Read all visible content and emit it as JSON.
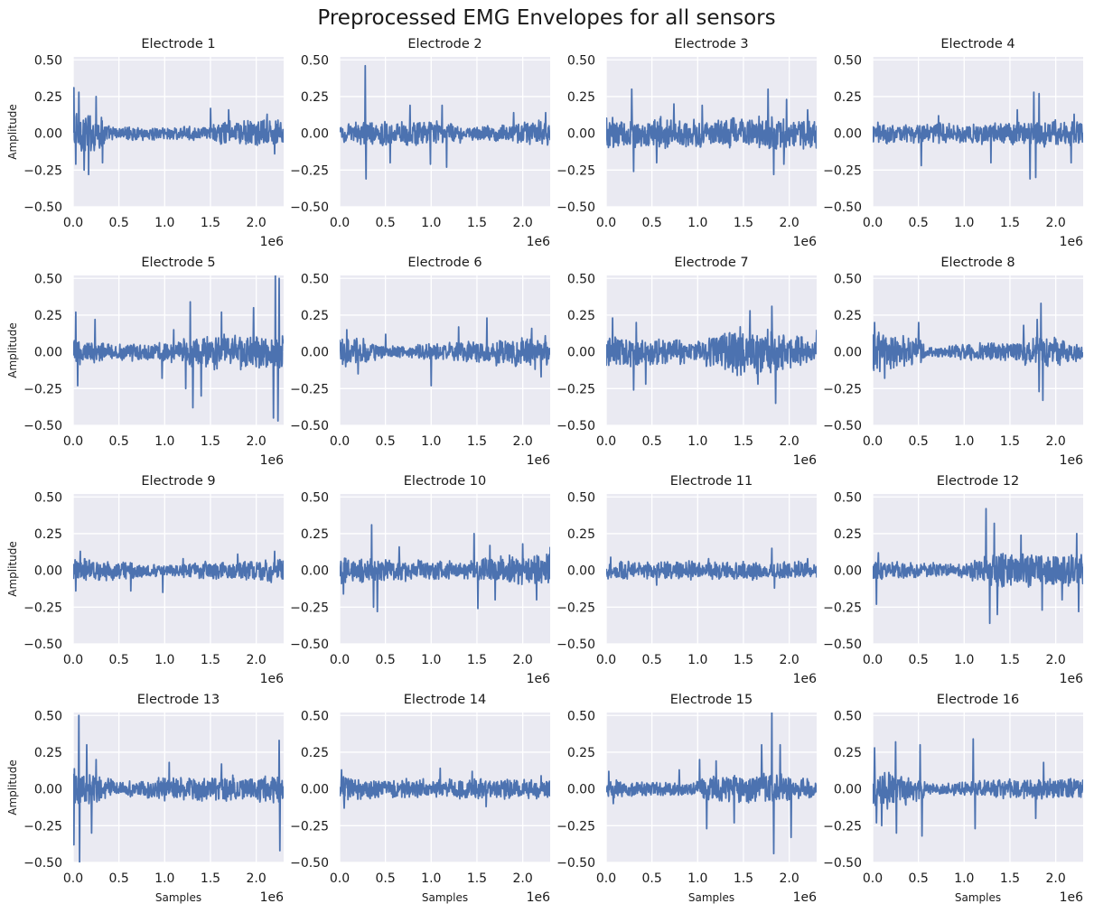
{
  "figure": {
    "title": "Preprocessed EMG Envelopes for all sensors",
    "background": "#ffffff",
    "axes_background": "#eaeaf2",
    "grid_color": "#ffffff",
    "line_color": "#4c72b0"
  },
  "chart_data": {
    "type": "line",
    "layout": "4x4 grid",
    "grid": true,
    "xlabel": "Samples",
    "ylabel": "Amplitude",
    "x_multiplier_label": "1e6",
    "xlim": [
      0,
      2.3
    ],
    "ylim": [
      -0.5,
      0.52
    ],
    "xticks": [
      0,
      0.5,
      1.0,
      1.5,
      2.0
    ],
    "xtick_labels": [
      "0.0",
      "0.5",
      "1.0",
      "1.5",
      "2.0"
    ],
    "yticks": [
      -0.5,
      -0.25,
      0,
      0.25,
      0.5
    ],
    "ytick_labels": [
      "−0.50",
      "−0.25",
      "0.00",
      "0.25",
      "0.50"
    ],
    "xlabel_rows": [
      3
    ],
    "ylabel_cols": [
      0
    ],
    "panels": [
      {
        "title": "Electrode 1",
        "envelope": [
          [
            0,
            0.2
          ],
          [
            0.3,
            0.14
          ],
          [
            0.4,
            0.05
          ],
          [
            1.5,
            0.05
          ],
          [
            1.6,
            0.1
          ],
          [
            2.3,
            0.1
          ]
        ],
        "spikes": [
          [
            0.01,
            0.31
          ],
          [
            0.03,
            -0.21
          ],
          [
            0.06,
            0.28
          ],
          [
            0.12,
            -0.25
          ],
          [
            0.17,
            -0.28
          ],
          [
            0.25,
            0.25
          ],
          [
            0.32,
            -0.2
          ],
          [
            1.5,
            0.17
          ],
          [
            1.7,
            0.16
          ],
          [
            2.12,
            0.13
          ],
          [
            2.2,
            -0.14
          ]
        ]
      },
      {
        "title": "Electrode 2",
        "envelope": [
          [
            0,
            0.08
          ],
          [
            0.5,
            0.09
          ],
          [
            1.2,
            0.09
          ],
          [
            1.4,
            0.05
          ],
          [
            1.8,
            0.07
          ],
          [
            2.3,
            0.1
          ]
        ],
        "spikes": [
          [
            0.28,
            0.46
          ],
          [
            0.29,
            -0.31
          ],
          [
            0.55,
            -0.2
          ],
          [
            0.77,
            0.19
          ],
          [
            0.99,
            -0.21
          ],
          [
            1.12,
            0.19
          ],
          [
            1.17,
            -0.23
          ],
          [
            1.9,
            0.14
          ],
          [
            2.25,
            0.14
          ]
        ]
      },
      {
        "title": "Electrode 3",
        "envelope": [
          [
            0,
            0.12
          ],
          [
            0.8,
            0.12
          ],
          [
            1.2,
            0.1
          ],
          [
            1.6,
            0.13
          ],
          [
            2.3,
            0.12
          ]
        ],
        "spikes": [
          [
            0.28,
            0.3
          ],
          [
            0.3,
            -0.26
          ],
          [
            0.55,
            -0.2
          ],
          [
            0.74,
            0.2
          ],
          [
            1.05,
            0.19
          ],
          [
            1.77,
            0.3
          ],
          [
            1.83,
            -0.28
          ],
          [
            1.97,
            0.23
          ],
          [
            1.94,
            -0.21
          ],
          [
            2.2,
            0.16
          ]
        ]
      },
      {
        "title": "Electrode 4",
        "envelope": [
          [
            0,
            0.08
          ],
          [
            1.5,
            0.08
          ],
          [
            1.8,
            0.1
          ],
          [
            2.3,
            0.1
          ]
        ],
        "spikes": [
          [
            0.53,
            -0.22
          ],
          [
            0.72,
            0.12
          ],
          [
            1.29,
            -0.2
          ],
          [
            1.58,
            0.16
          ],
          [
            1.72,
            -0.31
          ],
          [
            1.76,
            0.28
          ],
          [
            1.78,
            -0.3
          ],
          [
            1.82,
            0.27
          ],
          [
            2.17,
            -0.2
          ],
          [
            2.2,
            0.13
          ]
        ]
      },
      {
        "title": "Electrode 5",
        "envelope": [
          [
            0,
            0.1
          ],
          [
            0.3,
            0.08
          ],
          [
            1.0,
            0.07
          ],
          [
            1.4,
            0.13
          ],
          [
            2.3,
            0.13
          ]
        ],
        "spikes": [
          [
            0.03,
            0.27
          ],
          [
            0.05,
            -0.23
          ],
          [
            0.24,
            0.22
          ],
          [
            0.97,
            -0.18
          ],
          [
            1.1,
            0.15
          ],
          [
            1.23,
            -0.25
          ],
          [
            1.28,
            0.34
          ],
          [
            1.31,
            -0.38
          ],
          [
            1.4,
            -0.3
          ],
          [
            1.62,
            0.27
          ],
          [
            1.97,
            0.3
          ],
          [
            2.19,
            -0.45
          ],
          [
            2.21,
            0.52
          ],
          [
            2.24,
            -0.47
          ],
          [
            2.25,
            0.5
          ]
        ]
      },
      {
        "title": "Electrode 6",
        "envelope": [
          [
            0,
            0.12
          ],
          [
            0.3,
            0.1
          ],
          [
            0.5,
            0.04
          ],
          [
            1.2,
            0.07
          ],
          [
            2.3,
            0.13
          ]
        ],
        "spikes": [
          [
            0.08,
            0.15
          ],
          [
            0.2,
            -0.15
          ],
          [
            0.5,
            0.12
          ],
          [
            1.0,
            -0.23
          ],
          [
            1.3,
            0.17
          ],
          [
            1.61,
            0.23
          ],
          [
            2.1,
            0.16
          ],
          [
            2.2,
            -0.17
          ]
        ]
      },
      {
        "title": "Electrode 7",
        "envelope": [
          [
            0,
            0.12
          ],
          [
            0.6,
            0.1
          ],
          [
            1.0,
            0.08
          ],
          [
            1.4,
            0.18
          ],
          [
            1.9,
            0.16
          ],
          [
            2.3,
            0.1
          ]
        ],
        "spikes": [
          [
            0.07,
            0.23
          ],
          [
            0.3,
            -0.26
          ],
          [
            0.33,
            0.2
          ],
          [
            0.43,
            -0.22
          ],
          [
            1.43,
            -0.16
          ],
          [
            1.57,
            0.28
          ],
          [
            1.66,
            -0.22
          ],
          [
            1.81,
            0.31
          ],
          [
            1.85,
            -0.35
          ],
          [
            2.3,
            0.15
          ]
        ]
      },
      {
        "title": "Electrode 8",
        "envelope": [
          [
            0,
            0.15
          ],
          [
            0.5,
            0.1
          ],
          [
            0.6,
            0.04
          ],
          [
            1.5,
            0.08
          ],
          [
            1.9,
            0.12
          ],
          [
            2.3,
            0.06
          ]
        ],
        "spikes": [
          [
            0.02,
            0.2
          ],
          [
            0.13,
            -0.18
          ],
          [
            0.5,
            0.2
          ],
          [
            1.65,
            0.18
          ],
          [
            1.8,
            0.22
          ],
          [
            1.82,
            -0.27
          ],
          [
            1.84,
            0.33
          ],
          [
            1.86,
            -0.33
          ]
        ]
      },
      {
        "title": "Electrode 9",
        "envelope": [
          [
            0,
            0.09
          ],
          [
            0.5,
            0.07
          ],
          [
            1.0,
            0.04
          ],
          [
            1.5,
            0.07
          ],
          [
            2.3,
            0.09
          ]
        ],
        "spikes": [
          [
            0.08,
            0.13
          ],
          [
            0.03,
            -0.14
          ],
          [
            0.63,
            -0.14
          ],
          [
            0.98,
            -0.15
          ],
          [
            1.2,
            0.08
          ],
          [
            1.8,
            0.11
          ],
          [
            2.2,
            0.13
          ]
        ]
      },
      {
        "title": "Electrode 10",
        "envelope": [
          [
            0,
            0.1
          ],
          [
            0.5,
            0.08
          ],
          [
            1.4,
            0.07
          ],
          [
            1.6,
            0.1
          ],
          [
            2.3,
            0.12
          ]
        ],
        "spikes": [
          [
            0.04,
            -0.16
          ],
          [
            0.35,
            0.31
          ],
          [
            0.37,
            -0.25
          ],
          [
            0.41,
            -0.28
          ],
          [
            0.65,
            0.16
          ],
          [
            1.47,
            0.25
          ],
          [
            1.51,
            -0.26
          ],
          [
            1.64,
            0.17
          ],
          [
            1.7,
            -0.2
          ],
          [
            2.0,
            0.18
          ],
          [
            2.15,
            -0.2
          ],
          [
            2.3,
            0.16
          ]
        ]
      },
      {
        "title": "Electrode 11",
        "envelope": [
          [
            0,
            0.07
          ],
          [
            2.3,
            0.07
          ]
        ],
        "spikes": [
          [
            0.05,
            0.09
          ],
          [
            0.55,
            -0.1
          ],
          [
            1.12,
            0.08
          ],
          [
            1.81,
            0.15
          ],
          [
            1.84,
            -0.12
          ],
          [
            2.2,
            0.08
          ]
        ]
      },
      {
        "title": "Electrode 12",
        "envelope": [
          [
            0,
            0.07
          ],
          [
            1.0,
            0.05
          ],
          [
            1.3,
            0.15
          ],
          [
            1.6,
            0.12
          ],
          [
            2.3,
            0.13
          ]
        ],
        "spikes": [
          [
            0.04,
            -0.23
          ],
          [
            0.06,
            0.12
          ],
          [
            1.24,
            0.42
          ],
          [
            1.28,
            -0.36
          ],
          [
            1.33,
            0.32
          ],
          [
            1.36,
            -0.3
          ],
          [
            1.62,
            0.24
          ],
          [
            1.85,
            -0.27
          ],
          [
            2.07,
            -0.2
          ],
          [
            2.23,
            0.25
          ],
          [
            2.25,
            -0.28
          ]
        ]
      },
      {
        "title": "Electrode 13",
        "envelope": [
          [
            0,
            0.15
          ],
          [
            0.3,
            0.1
          ],
          [
            0.5,
            0.05
          ],
          [
            1.0,
            0.09
          ],
          [
            2.3,
            0.1
          ]
        ],
        "spikes": [
          [
            0.01,
            -0.38
          ],
          [
            0.06,
            0.5
          ],
          [
            0.07,
            -0.5
          ],
          [
            0.15,
            0.3
          ],
          [
            0.2,
            -0.3
          ],
          [
            0.25,
            0.2
          ],
          [
            1.05,
            0.18
          ],
          [
            1.62,
            0.17
          ],
          [
            2.25,
            0.33
          ],
          [
            2.26,
            -0.42
          ]
        ]
      },
      {
        "title": "Electrode 14",
        "envelope": [
          [
            0,
            0.1
          ],
          [
            0.5,
            0.07
          ],
          [
            2.3,
            0.08
          ]
        ],
        "spikes": [
          [
            0.02,
            0.13
          ],
          [
            0.05,
            -0.13
          ],
          [
            1.1,
            0.14
          ],
          [
            1.45,
            0.12
          ],
          [
            1.6,
            -0.12
          ],
          [
            2.2,
            0.09
          ]
        ]
      },
      {
        "title": "Electrode 15",
        "envelope": [
          [
            0,
            0.08
          ],
          [
            0.3,
            0.06
          ],
          [
            0.9,
            0.04
          ],
          [
            1.1,
            0.1
          ],
          [
            1.7,
            0.12
          ],
          [
            2.0,
            0.1
          ],
          [
            2.3,
            0.07
          ]
        ],
        "spikes": [
          [
            0.03,
            0.12
          ],
          [
            0.08,
            -0.1
          ],
          [
            0.8,
            0.13
          ],
          [
            1.02,
            0.2
          ],
          [
            1.1,
            -0.27
          ],
          [
            1.2,
            0.19
          ],
          [
            1.4,
            -0.23
          ],
          [
            1.7,
            0.3
          ],
          [
            1.81,
            0.52
          ],
          [
            1.83,
            -0.44
          ],
          [
            1.9,
            0.3
          ],
          [
            2.02,
            -0.33
          ]
        ]
      },
      {
        "title": "Electrode 16",
        "envelope": [
          [
            0,
            0.17
          ],
          [
            0.5,
            0.1
          ],
          [
            0.6,
            0.04
          ],
          [
            1.7,
            0.08
          ],
          [
            2.3,
            0.08
          ]
        ],
        "spikes": [
          [
            0.02,
            0.28
          ],
          [
            0.04,
            -0.23
          ],
          [
            0.1,
            -0.25
          ],
          [
            0.25,
            0.32
          ],
          [
            0.26,
            -0.3
          ],
          [
            0.52,
            0.3
          ],
          [
            0.54,
            -0.32
          ],
          [
            1.1,
            0.34
          ],
          [
            1.12,
            -0.27
          ],
          [
            1.78,
            -0.2
          ],
          [
            1.87,
            0.18
          ]
        ]
      }
    ]
  }
}
